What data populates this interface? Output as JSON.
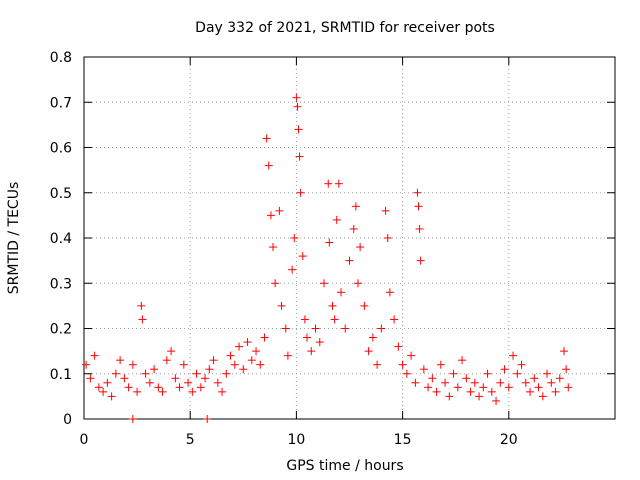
{
  "chart_data": {
    "type": "scatter",
    "title": "Day 332 of 2021, SRMTID for receiver pots",
    "xlabel": "GPS time / hours",
    "ylabel": "SRMTID / TECUs",
    "xlim": [
      0,
      25
    ],
    "ylim": [
      0,
      0.8
    ],
    "xticks": [
      0,
      5,
      10,
      15,
      20
    ],
    "yticks": [
      0,
      0.1,
      0.2,
      0.3,
      0.4,
      0.5,
      0.6,
      0.7,
      0.8
    ],
    "xtick_labels": [
      "0",
      "5",
      "10",
      "15",
      "20"
    ],
    "ytick_labels": [
      "0",
      "0.1",
      "0.2",
      "0.3",
      "0.4",
      "0.5",
      "0.6",
      "0.7",
      "0.8"
    ],
    "grid": true,
    "legend": "none",
    "series": [
      {
        "name": "pots",
        "color": "#ff0000",
        "marker": "plus",
        "points": [
          [
            0.1,
            0.12
          ],
          [
            0.3,
            0.09
          ],
          [
            0.5,
            0.14
          ],
          [
            0.7,
            0.07
          ],
          [
            0.9,
            0.06
          ],
          [
            1.1,
            0.08
          ],
          [
            1.3,
            0.05
          ],
          [
            1.5,
            0.1
          ],
          [
            1.7,
            0.13
          ],
          [
            1.9,
            0.09
          ],
          [
            2.1,
            0.07
          ],
          [
            2.3,
            0.12
          ],
          [
            2.5,
            0.06
          ],
          [
            2.7,
            0.25
          ],
          [
            2.75,
            0.22
          ],
          [
            2.9,
            0.1
          ],
          [
            3.1,
            0.08
          ],
          [
            3.3,
            0.11
          ],
          [
            3.5,
            0.07
          ],
          [
            3.7,
            0.06
          ],
          [
            3.9,
            0.13
          ],
          [
            4.1,
            0.15
          ],
          [
            4.3,
            0.09
          ],
          [
            4.5,
            0.07
          ],
          [
            4.7,
            0.12
          ],
          [
            4.9,
            0.08
          ],
          [
            5.1,
            0.06
          ],
          [
            5.3,
            0.1
          ],
          [
            5.5,
            0.07
          ],
          [
            5.7,
            0.09
          ],
          [
            5.9,
            0.11
          ],
          [
            6.1,
            0.13
          ],
          [
            6.3,
            0.08
          ],
          [
            6.5,
            0.06
          ],
          [
            6.7,
            0.1
          ],
          [
            6.9,
            0.14
          ],
          [
            7.1,
            0.12
          ],
          [
            7.3,
            0.16
          ],
          [
            7.5,
            0.11
          ],
          [
            7.7,
            0.17
          ],
          [
            7.9,
            0.13
          ],
          [
            8.1,
            0.15
          ],
          [
            8.3,
            0.12
          ],
          [
            8.5,
            0.18
          ],
          [
            8.6,
            0.62
          ],
          [
            8.7,
            0.56
          ],
          [
            8.8,
            0.45
          ],
          [
            8.9,
            0.38
          ],
          [
            9.0,
            0.3
          ],
          [
            9.2,
            0.46
          ],
          [
            9.3,
            0.25
          ],
          [
            9.5,
            0.2
          ],
          [
            9.6,
            0.14
          ],
          [
            9.8,
            0.33
          ],
          [
            9.9,
            0.4
          ],
          [
            10.0,
            0.71
          ],
          [
            10.05,
            0.69
          ],
          [
            10.1,
            0.64
          ],
          [
            10.15,
            0.58
          ],
          [
            10.2,
            0.5
          ],
          [
            10.3,
            0.36
          ],
          [
            10.4,
            0.22
          ],
          [
            10.5,
            0.18
          ],
          [
            10.7,
            0.15
          ],
          [
            10.9,
            0.2
          ],
          [
            11.1,
            0.17
          ],
          [
            11.3,
            0.3
          ],
          [
            11.5,
            0.52
          ],
          [
            11.55,
            0.39
          ],
          [
            11.7,
            0.25
          ],
          [
            11.8,
            0.22
          ],
          [
            11.9,
            0.44
          ],
          [
            12.0,
            0.52
          ],
          [
            12.1,
            0.28
          ],
          [
            12.3,
            0.2
          ],
          [
            12.5,
            0.35
          ],
          [
            12.7,
            0.42
          ],
          [
            12.8,
            0.47
          ],
          [
            12.9,
            0.3
          ],
          [
            13.0,
            0.38
          ],
          [
            13.2,
            0.25
          ],
          [
            13.4,
            0.15
          ],
          [
            13.6,
            0.18
          ],
          [
            13.8,
            0.12
          ],
          [
            14.0,
            0.2
          ],
          [
            14.2,
            0.46
          ],
          [
            14.3,
            0.4
          ],
          [
            14.4,
            0.28
          ],
          [
            14.6,
            0.22
          ],
          [
            14.8,
            0.16
          ],
          [
            15.0,
            0.12
          ],
          [
            15.2,
            0.1
          ],
          [
            15.4,
            0.14
          ],
          [
            15.6,
            0.08
          ],
          [
            15.7,
            0.5
          ],
          [
            15.75,
            0.47
          ],
          [
            15.8,
            0.42
          ],
          [
            15.85,
            0.35
          ],
          [
            16.0,
            0.11
          ],
          [
            16.2,
            0.07
          ],
          [
            16.4,
            0.09
          ],
          [
            16.6,
            0.06
          ],
          [
            16.8,
            0.12
          ],
          [
            17.0,
            0.08
          ],
          [
            17.2,
            0.05
          ],
          [
            17.4,
            0.1
          ],
          [
            17.6,
            0.07
          ],
          [
            17.8,
            0.13
          ],
          [
            18.0,
            0.09
          ],
          [
            18.2,
            0.06
          ],
          [
            18.4,
            0.08
          ],
          [
            18.6,
            0.05
          ],
          [
            18.8,
            0.07
          ],
          [
            19.0,
            0.1
          ],
          [
            19.2,
            0.06
          ],
          [
            19.4,
            0.04
          ],
          [
            19.6,
            0.08
          ],
          [
            19.8,
            0.11
          ],
          [
            20.0,
            0.07
          ],
          [
            20.2,
            0.14
          ],
          [
            20.4,
            0.1
          ],
          [
            20.6,
            0.12
          ],
          [
            20.8,
            0.08
          ],
          [
            21.0,
            0.06
          ],
          [
            21.2,
            0.09
          ],
          [
            21.4,
            0.07
          ],
          [
            21.6,
            0.05
          ],
          [
            21.8,
            0.1
          ],
          [
            22.0,
            0.08
          ],
          [
            22.2,
            0.06
          ],
          [
            22.4,
            0.09
          ],
          [
            22.6,
            0.15
          ],
          [
            22.7,
            0.11
          ],
          [
            22.8,
            0.07
          ],
          [
            2.3,
            0.0
          ],
          [
            5.8,
            0.0
          ]
        ]
      }
    ]
  }
}
